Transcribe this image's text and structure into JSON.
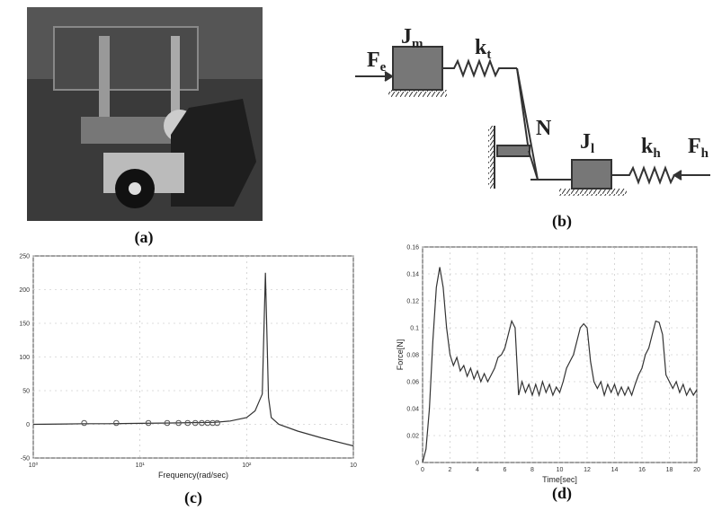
{
  "panel_labels": [
    "(a)",
    "(b)",
    "(c)",
    "(d)"
  ],
  "diagram": {
    "labels": [
      {
        "base": "J",
        "sub": "m"
      },
      {
        "base": "k",
        "sub": "t"
      },
      {
        "base": "F",
        "sub": "e"
      },
      {
        "base": "N"
      },
      {
        "base": "J",
        "sub": "l"
      },
      {
        "base": "k",
        "sub": "h"
      },
      {
        "base": "F",
        "sub": "h"
      }
    ]
  },
  "chart_data": [
    {
      "type": "line",
      "xlabel": "Frequency(rad/sec)",
      "log_x": true,
      "grid": true,
      "xlim": [
        1,
        1000
      ],
      "xticks": [
        {
          "value": 1,
          "label": "10⁰"
        },
        {
          "value": 10,
          "label": "10¹"
        },
        {
          "value": 100,
          "label": "10²"
        },
        {
          "value": 1000,
          "label": "10"
        }
      ],
      "ylim": [
        -50,
        250
      ],
      "yticks": [
        -50,
        0,
        50,
        100,
        150,
        200,
        250
      ],
      "series": [
        {
          "color": "#333333",
          "x": [
            1,
            2,
            3,
            5,
            10,
            20,
            30,
            50,
            70,
            100,
            120,
            140,
            150,
            160,
            170,
            200,
            300,
            500,
            1000
          ],
          "values": [
            0,
            0.5,
            1,
            1,
            1.5,
            2,
            2.5,
            3,
            5,
            10,
            20,
            45,
            225,
            40,
            10,
            0,
            -10,
            -20,
            -32
          ]
        },
        {
          "color": "#555555",
          "marker": "circle",
          "x": [
            3,
            6,
            12,
            18,
            23,
            28,
            33,
            38,
            43,
            48,
            53
          ],
          "values": [
            2,
            2,
            2,
            2,
            2,
            2,
            2,
            2,
            2,
            2,
            2
          ]
        }
      ]
    },
    {
      "type": "line",
      "xlabel": "Time[sec]",
      "ylabel": "Force[N]",
      "grid": true,
      "xlim": [
        0,
        20
      ],
      "xticks": [
        0,
        2,
        4,
        6,
        8,
        10,
        12,
        14,
        16,
        18,
        20
      ],
      "ylim": [
        0,
        0.16
      ],
      "yticks": [
        0,
        0.02,
        0.04,
        0.06,
        0.08,
        0.1,
        0.12,
        0.14,
        0.16
      ],
      "series": [
        {
          "color": "#333333",
          "x": [
            0,
            0.25,
            0.5,
            0.75,
            1,
            1.25,
            1.5,
            1.75,
            2,
            2.25,
            2.5,
            2.75,
            3,
            3.25,
            3.5,
            3.75,
            4,
            4.25,
            4.5,
            4.75,
            5,
            5.25,
            5.5,
            5.75,
            6,
            6.25,
            6.5,
            6.75,
            7,
            7.25,
            7.5,
            7.75,
            8,
            8.25,
            8.5,
            8.75,
            9,
            9.25,
            9.5,
            9.75,
            10,
            10.25,
            10.5,
            10.75,
            11,
            11.25,
            11.5,
            11.75,
            12,
            12.25,
            12.5,
            12.75,
            13,
            13.25,
            13.5,
            13.75,
            14,
            14.25,
            14.5,
            14.75,
            15,
            15.25,
            15.5,
            15.75,
            16,
            16.25,
            16.5,
            16.75,
            17,
            17.25,
            17.5,
            17.75,
            18,
            18.25,
            18.5,
            18.75,
            19,
            19.25,
            19.5,
            19.75,
            20
          ],
          "values": [
            0,
            0.01,
            0.04,
            0.09,
            0.13,
            0.145,
            0.13,
            0.1,
            0.08,
            0.072,
            0.078,
            0.068,
            0.072,
            0.064,
            0.07,
            0.062,
            0.068,
            0.06,
            0.066,
            0.06,
            0.065,
            0.07,
            0.078,
            0.08,
            0.085,
            0.095,
            0.105,
            0.1,
            0.05,
            0.06,
            0.052,
            0.058,
            0.05,
            0.058,
            0.05,
            0.06,
            0.052,
            0.058,
            0.05,
            0.056,
            0.052,
            0.06,
            0.07,
            0.075,
            0.08,
            0.09,
            0.1,
            0.103,
            0.1,
            0.075,
            0.06,
            0.055,
            0.06,
            0.05,
            0.058,
            0.052,
            0.058,
            0.05,
            0.056,
            0.05,
            0.056,
            0.05,
            0.058,
            0.065,
            0.07,
            0.08,
            0.085,
            0.095,
            0.105,
            0.104,
            0.095,
            0.065,
            0.06,
            0.055,
            0.06,
            0.052,
            0.058,
            0.05,
            0.055,
            0.05,
            0.054
          ]
        }
      ]
    }
  ]
}
